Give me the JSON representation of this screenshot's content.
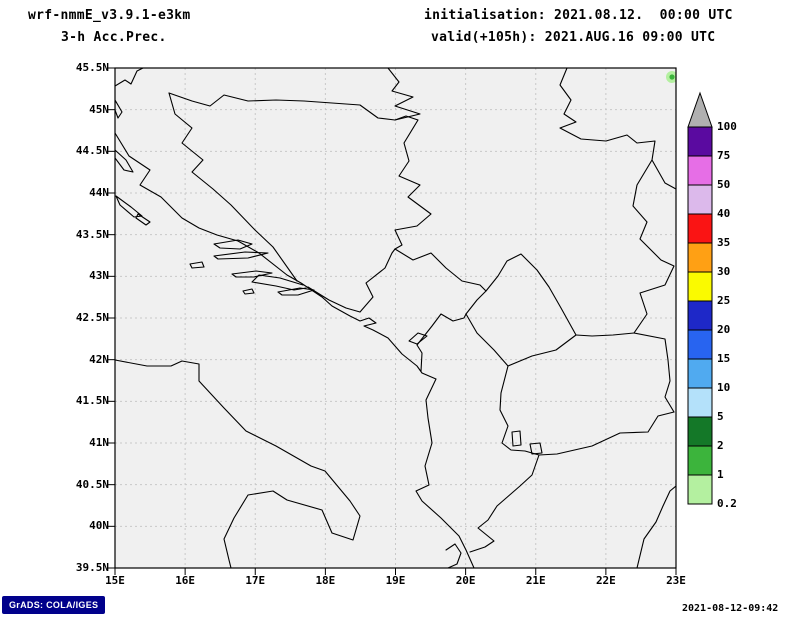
{
  "header": {
    "model": "wrf-nmmE_v3.9.1-e3km",
    "product": "3-h Acc.Prec.",
    "init": "initialisation: 2021.08.12.  00:00 UTC",
    "valid": "valid(+105h): 2021.AUG.16 09:00 UTC"
  },
  "map": {
    "background": "#f0f0f0",
    "gridline_color": "#c8c8c8",
    "outline_color": "#000000",
    "extent": {
      "lon_min": 15,
      "lon_max": 23,
      "lat_min": 39.5,
      "lat_max": 45.5
    },
    "lat_ticks": [
      {
        "label": "45.5N",
        "lat": 45.5
      },
      {
        "label": "45N",
        "lat": 45
      },
      {
        "label": "44.5N",
        "lat": 44.5
      },
      {
        "label": "44N",
        "lat": 44
      },
      {
        "label": "43.5N",
        "lat": 43.5
      },
      {
        "label": "43N",
        "lat": 43
      },
      {
        "label": "42.5N",
        "lat": 42.5
      },
      {
        "label": "42N",
        "lat": 42
      },
      {
        "label": "41.5N",
        "lat": 41.5
      },
      {
        "label": "41N",
        "lat": 41
      },
      {
        "label": "40.5N",
        "lat": 40.5
      },
      {
        "label": "40N",
        "lat": 40
      },
      {
        "label": "39.5N",
        "lat": 39.5
      }
    ],
    "lon_ticks": [
      {
        "label": "15E",
        "lon": 15
      },
      {
        "label": "16E",
        "lon": 16
      },
      {
        "label": "17E",
        "lon": 17
      },
      {
        "label": "18E",
        "lon": 18
      },
      {
        "label": "19E",
        "lon": 19
      },
      {
        "label": "20E",
        "lon": 20
      },
      {
        "label": "21E",
        "lon": 21
      },
      {
        "label": "22E",
        "lon": 22
      },
      {
        "label": "23E",
        "lon": 23
      }
    ]
  },
  "colorbar": {
    "labels_top_to_bottom": [
      "100",
      "75",
      "50",
      "40",
      "35",
      "30",
      "25",
      "20",
      "15",
      "10",
      "5",
      "2",
      "1",
      "0.2"
    ],
    "segments_top_to_bottom": [
      {
        "range": "> 100",
        "color": "#b0b0b0",
        "shape": "triangle"
      },
      {
        "range": "75-100",
        "color": "#5a0aa0"
      },
      {
        "range": "50-75",
        "color": "#e66ee6"
      },
      {
        "range": "40-50",
        "color": "#dcb9eb"
      },
      {
        "range": "35-40",
        "color": "#fa1414"
      },
      {
        "range": "30-35",
        "color": "#ffa014"
      },
      {
        "range": "25-30",
        "color": "#fafa00"
      },
      {
        "range": "20-25",
        "color": "#1e28c8"
      },
      {
        "range": "15-20",
        "color": "#2864f0"
      },
      {
        "range": "10-15",
        "color": "#50aaf0"
      },
      {
        "range": "5-10",
        "color": "#b4e1fa"
      },
      {
        "range": "2-5",
        "color": "#147828"
      },
      {
        "range": "1-2",
        "color": "#3cb43c"
      },
      {
        "range": "0.2-1",
        "color": "#b4f0a0"
      }
    ]
  },
  "precipitation_spots": [
    {
      "approx_lon": 22.94,
      "approx_lat": 45.39,
      "value_mm": "0.2-2"
    }
  ],
  "footer": {
    "left": "GrADS: COLA/IGES",
    "right": "2021-08-12-09:42"
  }
}
